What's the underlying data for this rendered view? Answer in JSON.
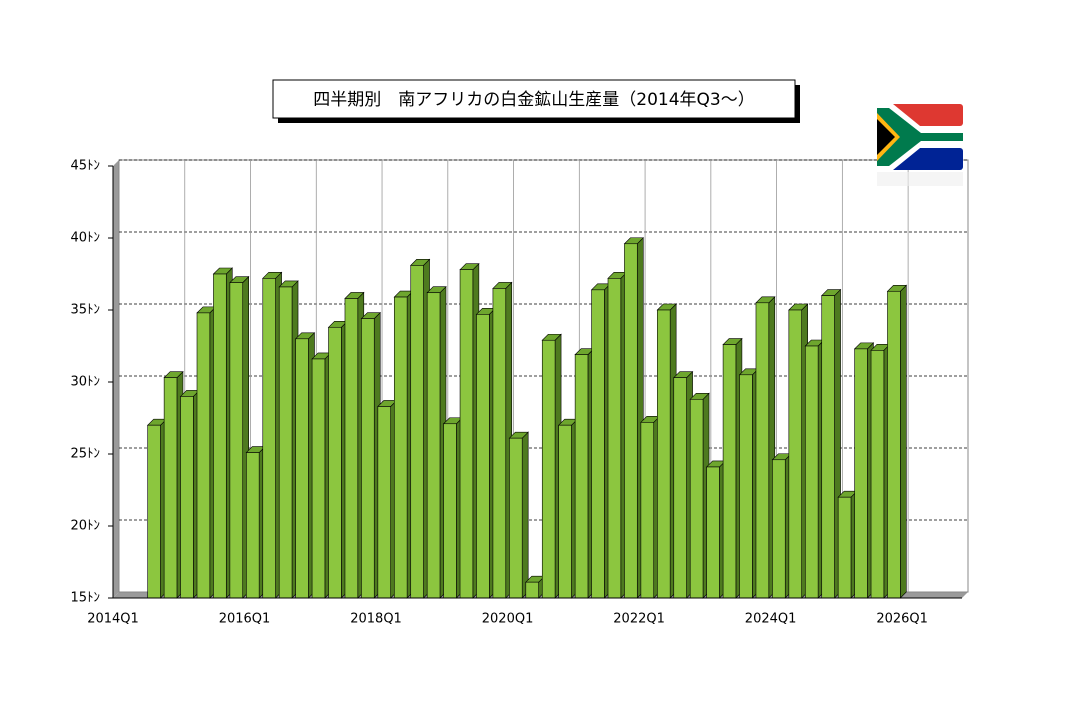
{
  "chart_data": {
    "type": "bar",
    "title": "四半期別　南アフリカの白金鉱山生産量（2014年Q3～）",
    "categories": [
      "2014Q1",
      null,
      null,
      null,
      null,
      null,
      null,
      null,
      "2016Q1",
      null,
      null,
      null,
      null,
      null,
      null,
      null,
      "2018Q1",
      null,
      null,
      null,
      null,
      null,
      null,
      null,
      "2020Q1",
      null,
      null,
      null,
      null,
      null,
      null,
      null,
      "2022Q1",
      null,
      null,
      null,
      null,
      null,
      null,
      null,
      "2024Q1",
      null,
      null,
      null,
      null,
      null,
      null,
      null,
      "2026Q1"
    ],
    "values": [
      null,
      null,
      27,
      30.3,
      29,
      34.8,
      37.5,
      36.9,
      25.1,
      37.2,
      36.6,
      33,
      31.6,
      33.8,
      35.8,
      34.4,
      28.3,
      35.9,
      38.1,
      36.2,
      27.1,
      37.8,
      34.7,
      36.5,
      26.1,
      16.1,
      32.9,
      27,
      31.9,
      36.4,
      37.2,
      39.6,
      27.2,
      35,
      30.3,
      28.8,
      24.1,
      32.6,
      30.5,
      35.5,
      24.6,
      35,
      32.5,
      36,
      22,
      32.3,
      32.2,
      36.3,
      null
    ],
    "color": "#8cc63f",
    "ylim": [
      15,
      45
    ],
    "yticks": [
      {
        "value": 15,
        "label": "15ﾄﾝ"
      },
      {
        "value": 20,
        "label": "20ﾄﾝ"
      },
      {
        "value": 25,
        "label": "25ﾄﾝ"
      },
      {
        "value": 30,
        "label": "30ﾄﾝ"
      },
      {
        "value": 35,
        "label": "35ﾄﾝ"
      },
      {
        "value": 40,
        "label": "40ﾄﾝ"
      },
      {
        "value": 45,
        "label": "45ﾄﾝ"
      }
    ],
    "grid": true
  }
}
